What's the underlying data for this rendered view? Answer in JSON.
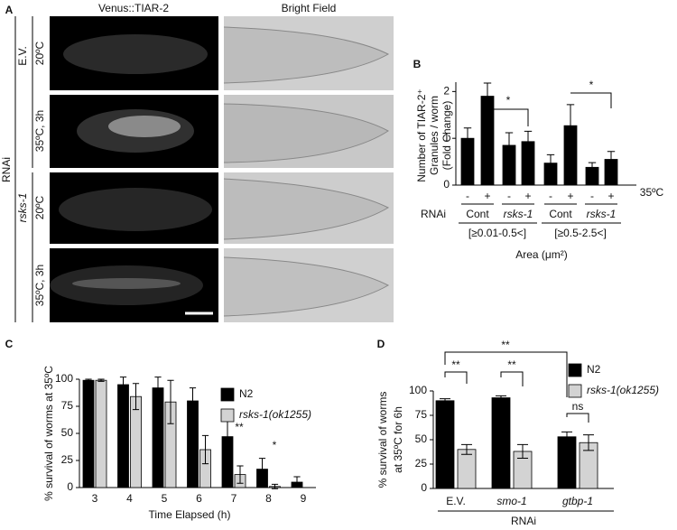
{
  "panel_labels": [
    "A",
    "B",
    "C",
    "D"
  ],
  "panel_a": {
    "columns": [
      "Venus::TIAR-2",
      "Bright Field"
    ],
    "rnai": "RNAi",
    "groups": [
      "E.V.",
      "rsks-1"
    ],
    "conditions": [
      "20ºC",
      "35ºC, 3h",
      "20ºC",
      "35ºC, 3h"
    ]
  },
  "chart_data": [
    {
      "type": "bar",
      "y_label": [
        "Number of TIAR-2⁺",
        "Granules / worm",
        "(Fold Change)"
      ],
      "categories": [
        "-",
        "+",
        "-",
        "+",
        "-",
        "+",
        "-",
        "+"
      ],
      "values": [
        1.0,
        1.9,
        0.85,
        0.93,
        0.47,
        1.27,
        0.38,
        0.55
      ],
      "errors": [
        0.22,
        0.28,
        0.27,
        0.22,
        0.18,
        0.45,
        0.1,
        0.17
      ],
      "color": "#000000",
      "ylim": [
        0,
        2.2
      ],
      "yticks": [
        0,
        1,
        2
      ],
      "heat_label": "35ºC",
      "rnai_label": "RNAi",
      "rnai_groups": [
        "Cont",
        "rsks-1",
        "Cont",
        "rsks-1"
      ],
      "area_ranges": [
        "[≥0.01-0.5<]",
        "[≥0.5-2.5<]"
      ],
      "x_label": "Area (μm²)",
      "annotations": [
        "*",
        "*"
      ]
    },
    {
      "type": "bar",
      "y_label": [
        "% survival of worms at 35ºC"
      ],
      "x_label": "Time Elapsed (h)",
      "categories": [
        3,
        4,
        5,
        6,
        7,
        8,
        9
      ],
      "series": [
        {
          "name": "N2",
          "color": "#000000",
          "values": [
            99,
            95,
            92,
            80,
            47,
            17,
            5
          ],
          "errors": [
            1,
            7,
            10,
            12,
            17,
            10,
            5
          ]
        },
        {
          "name": "rsks-1(ok1255)",
          "color": "#d3d3d3",
          "values": [
            99,
            84,
            79,
            35,
            12,
            1,
            0
          ],
          "errors": [
            1,
            12,
            20,
            13,
            8,
            2,
            0
          ]
        }
      ],
      "ylim": [
        0,
        100
      ],
      "yticks": [
        0,
        25,
        50,
        75,
        100
      ],
      "annotations": [
        "**",
        "*"
      ]
    },
    {
      "type": "bar",
      "y_label": [
        "% survival of worms",
        "at 35ºC for 6h"
      ],
      "x_label": "RNAi",
      "categories": [
        "E.V.",
        "smo-1",
        "gtbp-1"
      ],
      "series": [
        {
          "name": "N2",
          "color": "#000000",
          "values": [
            90,
            93,
            53
          ],
          "errors": [
            2,
            2,
            5
          ]
        },
        {
          "name": "rsks-1(ok1255)",
          "color": "#d3d3d3",
          "values": [
            40,
            38,
            47
          ],
          "errors": [
            5,
            7,
            8
          ]
        }
      ],
      "ylim": [
        0,
        100
      ],
      "yticks": [
        0,
        25,
        50,
        75,
        100
      ],
      "annotations": [
        "**",
        "**",
        "**",
        "ns"
      ]
    }
  ]
}
